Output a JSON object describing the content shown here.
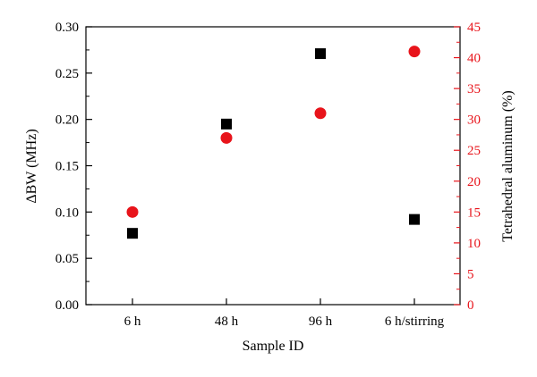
{
  "chart_data": {
    "type": "scatter",
    "xlabel": "Sample ID",
    "categories": [
      "6 h",
      "48 h",
      "96 h",
      "6 h/stirring"
    ],
    "y_left": {
      "label": "ΔBW (MHz)",
      "range": [
        0,
        0.3
      ],
      "ticks": [
        "0.00",
        "0.05",
        "0.10",
        "0.15",
        "0.20",
        "0.25",
        "0.30"
      ],
      "color": "#000000"
    },
    "y_right": {
      "label": "Tetrahedral aluminum (%)",
      "range": [
        0,
        45
      ],
      "ticks": [
        "0",
        "5",
        "10",
        "15",
        "20",
        "25",
        "30",
        "35",
        "40",
        "45"
      ],
      "color": "#e8141b"
    },
    "series": [
      {
        "axis": "left",
        "marker": "square",
        "color": "#000000",
        "values": [
          0.077,
          0.195,
          0.271,
          0.092
        ]
      },
      {
        "axis": "right",
        "marker": "circle",
        "color": "#e8141b",
        "values": [
          15,
          27,
          31,
          41
        ]
      }
    ],
    "grid": false,
    "legend": "none"
  }
}
